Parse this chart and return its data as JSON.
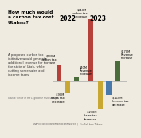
{
  "header_lines": [
    "How much would a",
    "carbon tax cost",
    "Utahns?"
  ],
  "body_text": "A proposed carbon tax\ninitiative would generate\nadditional revenue for\nthe state of Utah, while\ncutting some sales and\nincome taxes.",
  "source_text": "Source: Office of the Legislative Fiscal Analyst",
  "footer_text": "GRAPHIC BY CHRISTOPHER CHERRINGTON  |  The Salt Lake Tribune",
  "title_2022": "2022",
  "title_2023": "2023",
  "bars_2022": [
    {
      "label": "$130M\ncarbon tax\nincrease",
      "value": 130,
      "color": "#b5413a",
      "label_side": "left"
    },
    {
      "label": "-$90M\nSales tax\ndecrease",
      "value": -90,
      "color": "#c8a832",
      "label_side": "left"
    },
    {
      "label": "$40M\nRevenue\nincreases",
      "value": 40,
      "color": "#4a6b3a",
      "label_side": "right"
    }
  ],
  "bars_2023": [
    {
      "label": "$510M\ncarbon tax\nincrease",
      "value": 510,
      "color": "#b5413a",
      "label_side": "left"
    },
    {
      "label": "-$230M\nSales tax\ndecrease",
      "value": -230,
      "color": "#c8a832",
      "label_side": "left"
    },
    {
      "label": "-$110M\nIncome tax\ndecrease",
      "value": -110,
      "color": "#4a7aab",
      "label_side": "left"
    },
    {
      "label": "$170M\nRevenue\nincrease",
      "value": 170,
      "color": "#4a6b3a",
      "label_side": "left"
    }
  ],
  "background_color": "#f0ebe0",
  "ylim": [
    -300,
    580
  ],
  "zero_line_color": "#aaaaaa",
  "bar_width": 0.45
}
